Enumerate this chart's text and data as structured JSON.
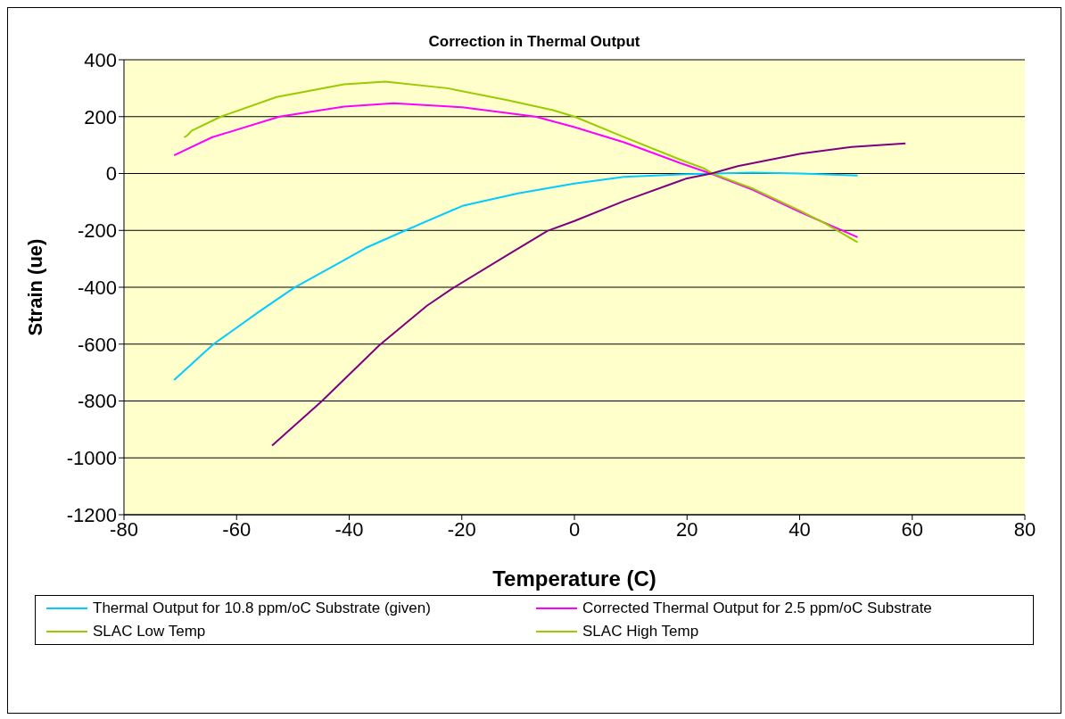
{
  "chart_data": {
    "type": "line",
    "title": "Correction in Thermal Output",
    "xlabel": "Temperature (C)",
    "ylabel": "Strain (ue)",
    "xlim": [
      -80,
      80
    ],
    "xticks": [
      -80,
      -60,
      -40,
      -20,
      0,
      20,
      40,
      60,
      80
    ],
    "ylim": [
      -1200,
      400
    ],
    "yticks": [
      -1200,
      -1000,
      -800,
      -600,
      -400,
      -200,
      0,
      200,
      400
    ],
    "grid": "y",
    "legend": "bottom",
    "marker": "none",
    "line_style": "solid",
    "series": [
      {
        "name": "Thermal Output for 10.8 ppm/oC Substrate (given)",
        "color": "#00ccff",
        "x": [
          -71.1,
          -64.1,
          -56,
          -49.8,
          -40.9,
          -37.1,
          -30,
          -19.9,
          -10,
          0,
          8.8,
          20,
          31.6,
          40.2,
          50.3
        ],
        "values": [
          -726,
          -600,
          -486,
          -402,
          -305,
          -262,
          -200,
          -114,
          -70,
          -35,
          -12,
          -2,
          3,
          0,
          -7
        ]
      },
      {
        "name": "Corrected Thermal Output for 2.5 ppm/oC Substrate",
        "color": "#ff00ff",
        "x": [
          -71.1,
          -64.4,
          -52.4,
          -40.9,
          -32.1,
          -19.9,
          -6.9,
          0,
          8.8,
          18.9,
          24.2,
          31.6,
          40.2,
          50.3
        ],
        "values": [
          64,
          127,
          200,
          235,
          247,
          233,
          200,
          163,
          110,
          36,
          0,
          -57,
          -137,
          -224
        ]
      },
      {
        "name": "SLAC Low Temp",
        "color": "#99cc00",
        "x": [
          -69.3,
          -68.7,
          -68,
          -62.8,
          -52.9,
          -40.9,
          -33.6,
          -22.6,
          -12.1,
          -3.8,
          0,
          8.8,
          18.9,
          23,
          24.5
        ],
        "values": [
          127,
          135,
          150,
          200,
          269,
          314,
          323,
          300,
          259,
          223,
          200,
          128,
          48,
          18,
          0
        ]
      },
      {
        "name": "SLAC High Temp",
        "color": "#99cc00",
        "x": [
          23,
          24.5,
          31.6,
          40.2,
          44.2,
          50.3
        ],
        "values": [
          18,
          0,
          -52,
          -132,
          -172,
          -242
        ]
      },
      {
        "color": "#800080",
        "x": [
          -53.7,
          -45,
          -34.6,
          -26.2,
          -21.5,
          -12.1,
          -4.8,
          0,
          8.8,
          20,
          24.5,
          29,
          40.2,
          49.2,
          58.8
        ],
        "values": [
          -957,
          -803,
          -603,
          -465,
          -402,
          -289,
          -202,
          -167,
          -97,
          -17,
          1,
          26,
          70,
          93,
          106
        ]
      }
    ]
  }
}
